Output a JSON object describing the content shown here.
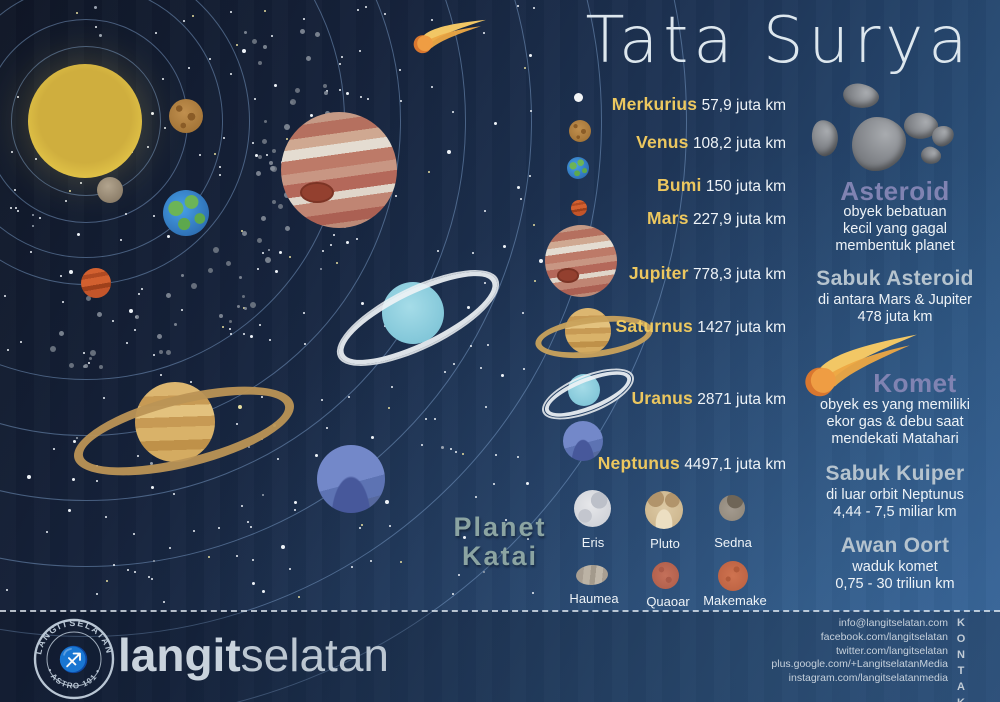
{
  "title": "Tata Surya",
  "planets": [
    {
      "name": "Merkurius",
      "distance": "57,9 juta km"
    },
    {
      "name": "Venus",
      "distance": "108,2 juta km"
    },
    {
      "name": "Bumi",
      "distance": "150 juta km"
    },
    {
      "name": "Mars",
      "distance": "227,9 juta km"
    },
    {
      "name": "Jupiter",
      "distance": "778,3 juta km"
    },
    {
      "name": "Saturnus",
      "distance": "1427 juta km"
    },
    {
      "name": "Uranus",
      "distance": "2871 juta km"
    },
    {
      "name": "Neptunus",
      "distance": "4497,1 juta km"
    }
  ],
  "sections": {
    "asteroid": {
      "heading": "Asteroid",
      "line1": "obyek bebatuan",
      "line2": "kecil yang gagal",
      "line3": "membentuk planet"
    },
    "sabuk_asteroid": {
      "heading": "Sabuk Asteroid",
      "line1": "di antara Mars & Jupiter",
      "line2": "478 juta km"
    },
    "komet": {
      "heading": "Komet",
      "line1": "obyek es yang memiliki",
      "line2": "ekor gas & debu saat",
      "line3": "mendekati Matahari"
    },
    "sabuk_kuiper": {
      "heading": "Sabuk Kuiper",
      "line1": "di luar orbit Neptunus",
      "line2": "4,44 - 7,5 miliar km"
    },
    "awan_oort": {
      "heading": "Awan Oort",
      "line1": "waduk komet",
      "line2": "0,75 - 30 triliun km"
    }
  },
  "planet_katai": {
    "title_line1": "Planet",
    "title_line2": "Katai",
    "row1": [
      {
        "name": "Eris"
      },
      {
        "name": "Pluto"
      },
      {
        "name": "Sedna"
      }
    ],
    "row2": [
      {
        "name": "Haumea"
      },
      {
        "name": "Quaoar"
      },
      {
        "name": "Makemake"
      }
    ]
  },
  "footer": {
    "seal_top": "LANGITSELATAN",
    "seal_bottom": "• ASTRO 101 •",
    "seal_glyph": "♐",
    "brand_bold": "langit",
    "brand_light": "selatan",
    "kontak_label": "KONTAK",
    "contacts": [
      "info@langitselatan.com",
      "facebook.com/langitselatan",
      "twitter.com/langitselatan",
      "plus.google.com/+LangitselatanMedia",
      "instagram.com/langitselatanmedia"
    ]
  },
  "colors": {
    "planet_name_gold": "#ecc75f",
    "value_text": "#eef3f7",
    "purple_heading": "#8083b2",
    "sub_heading": "#b5c3ce",
    "katai_title": "#8ba4a2",
    "background_dark": "#0f1626",
    "background_light": "#336093",
    "sun_yellow": "#ddbe45",
    "orbit_line": "rgba(130,165,210,0.48)"
  }
}
